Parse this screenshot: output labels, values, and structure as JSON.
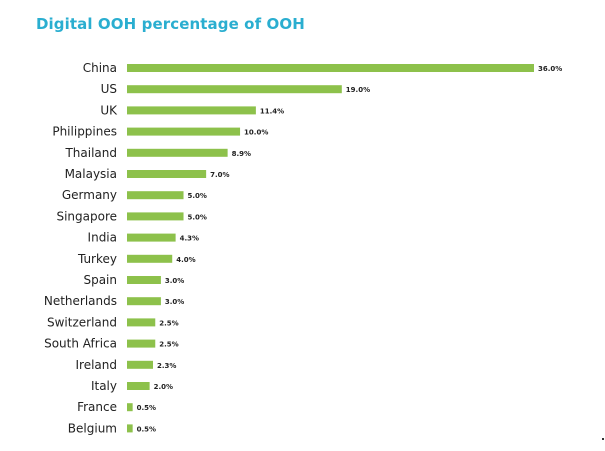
{
  "colors": {
    "title": "#2aaed0",
    "bar": "#8dc14b",
    "text": "#222222"
  },
  "chart_data": {
    "type": "bar",
    "orientation": "horizontal",
    "title": "Digital OOH percentage of OOH",
    "xlabel": "",
    "ylabel": "",
    "xlim": [
      0,
      36
    ],
    "grid": false,
    "legend": "none",
    "categories": [
      "China",
      "US",
      "UK",
      "Philippines",
      "Thailand",
      "Malaysia",
      "Germany",
      "Singapore",
      "India",
      "Turkey",
      "Spain",
      "Netherlands",
      "Switzerland",
      "South Africa",
      "Ireland",
      "Italy",
      "France",
      "Belgium"
    ],
    "values": [
      36.0,
      19.0,
      11.4,
      10.0,
      8.9,
      7.0,
      5.0,
      5.0,
      4.3,
      4.0,
      3.0,
      3.0,
      2.5,
      2.5,
      2.3,
      2.0,
      0.5,
      0.5
    ],
    "value_labels": [
      "36.0%",
      "19.0%",
      "11.4%",
      "10.0%",
      "8.9%",
      "7.0%",
      "5.0%",
      "5.0%",
      "4.3%",
      "4.0%",
      "3.0%",
      "3.0%",
      "2.5%",
      "2.5%",
      "2.3%",
      "2.0%",
      "0.5%",
      "0.5%"
    ]
  }
}
